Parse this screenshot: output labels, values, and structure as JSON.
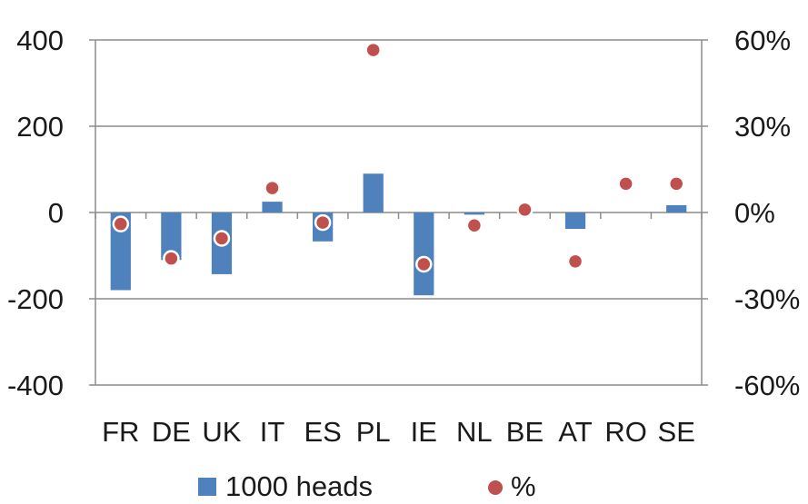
{
  "chart_data": {
    "type": "bar",
    "categories": [
      "FR",
      "DE",
      "UK",
      "IT",
      "ES",
      "PL",
      "IE",
      "NL",
      "BE",
      "AT",
      "RO",
      "SE"
    ],
    "series": [
      {
        "name": "1000 heads",
        "type": "bar",
        "axis": "left",
        "color": "#4f81bd",
        "values": [
          -180,
          -110,
          -143,
          25,
          -67,
          90,
          -192,
          -5,
          0,
          -38,
          0,
          17
        ]
      },
      {
        "name": "%",
        "type": "scatter",
        "axis": "right",
        "color": "#c0504d",
        "values": [
          -4.0,
          -16.0,
          -9.0,
          8.5,
          -3.5,
          56.5,
          -18.0,
          -4.5,
          1.0,
          -17.0,
          10.0,
          10.0
        ]
      }
    ],
    "y_left": {
      "ylim": [
        -400,
        400
      ],
      "ticks": [
        400,
        200,
        0,
        -200,
        -400
      ],
      "tick_labels": [
        "400",
        "200",
        "0",
        "-200",
        "-400"
      ]
    },
    "y_right": {
      "ylim": [
        -60,
        60
      ],
      "ticks": [
        60,
        30,
        0,
        -30,
        -60
      ],
      "tick_labels": [
        "60%",
        "30%",
        "0%",
        "-30%",
        "-60%"
      ]
    },
    "grid": true,
    "legend": "bottom",
    "title": "",
    "xlabel": "",
    "ylabel": ""
  }
}
